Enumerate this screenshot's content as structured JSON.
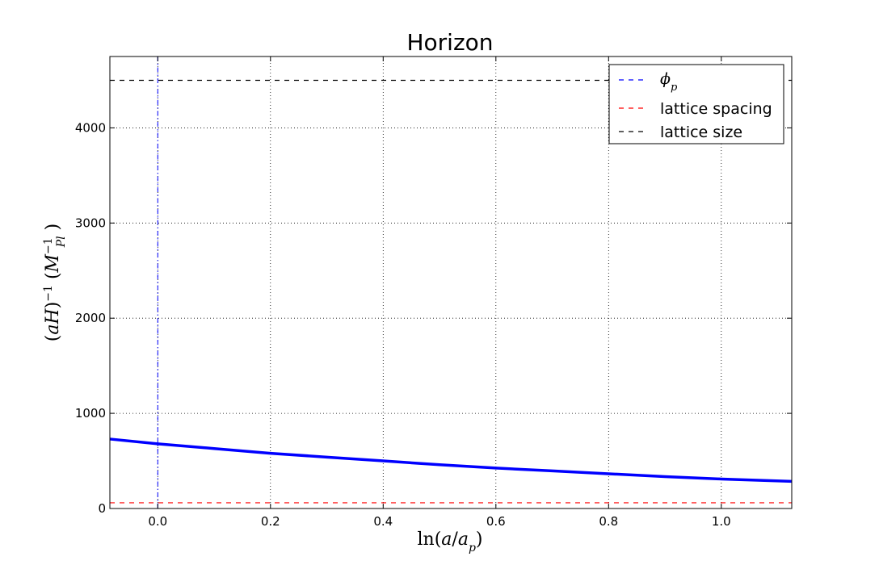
{
  "chart_data": {
    "type": "line",
    "title": "Horizon",
    "xlabel": "ln(a/a_p)",
    "ylabel": "(aH)^-1 (M_Pl^-1)",
    "xlim": [
      -0.085,
      1.125
    ],
    "ylim": [
      0,
      4750
    ],
    "xticks": [
      0.0,
      0.2,
      0.4,
      0.6,
      0.8,
      1.0
    ],
    "xtick_labels": [
      "0.0",
      "0.2",
      "0.4",
      "0.6",
      "0.8",
      "1.0"
    ],
    "yticks": [
      0,
      1000,
      2000,
      3000,
      4000
    ],
    "ytick_labels": [
      "0",
      "1000",
      "2000",
      "3000",
      "4000"
    ],
    "grid": true,
    "legend_position": "top-right",
    "series": [
      {
        "kind": "line",
        "color": "#0000ff",
        "x": [
          -0.085,
          0.0,
          0.1,
          0.2,
          0.3,
          0.4,
          0.5,
          0.6,
          0.7,
          0.8,
          0.9,
          1.0,
          1.125
        ],
        "values": [
          730,
          680,
          630,
          580,
          540,
          500,
          460,
          425,
          395,
          365,
          335,
          310,
          285
        ]
      },
      {
        "name": "φ_p",
        "kind": "vline",
        "style": "dash-dot",
        "color": "#0000ff",
        "x": 0.0
      },
      {
        "name": "lattice spacing",
        "kind": "hline",
        "style": "dashed",
        "color": "#ff0000",
        "y": 60
      },
      {
        "name": "lattice size",
        "kind": "hline",
        "style": "dashed",
        "color": "#000000",
        "y": 4500
      }
    ]
  }
}
